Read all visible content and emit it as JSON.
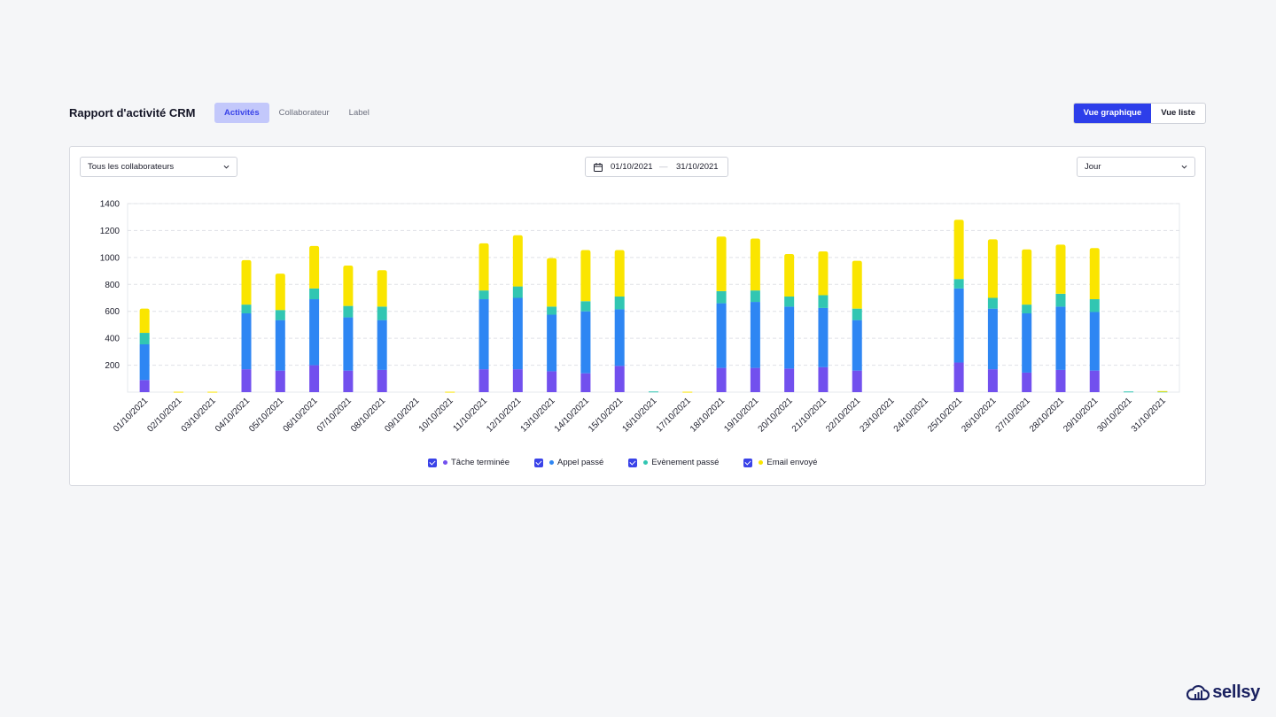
{
  "header": {
    "title": "Rapport d'activité CRM",
    "tabs": [
      {
        "label": "Activités"
      },
      {
        "label": "Collaborateur"
      },
      {
        "label": "Label"
      }
    ],
    "views": [
      {
        "label": "Vue graphique"
      },
      {
        "label": "Vue liste"
      }
    ]
  },
  "filters": {
    "collaborator": "Tous les collaborateurs",
    "date_start": "01/10/2021",
    "date_sep": "—",
    "date_end": "31/10/2021",
    "granularity": "Jour"
  },
  "brand": {
    "name": "sellsy"
  },
  "colors": {
    "tache": "#7250ee",
    "appel": "#2e86f3",
    "evenement": "#31c6b2",
    "email": "#fae500",
    "accent": "#2d3eea"
  },
  "chart_data": {
    "type": "bar",
    "stacked": true,
    "categories": [
      "01/10/2021",
      "02/10/2021",
      "03/10/2021",
      "04/10/2021",
      "05/10/2021",
      "06/10/2021",
      "07/10/2021",
      "08/10/2021",
      "09/10/2021",
      "10/10/2021",
      "11/10/2021",
      "12/10/2021",
      "13/10/2021",
      "14/10/2021",
      "15/10/2021",
      "16/10/2021",
      "17/10/2021",
      "18/10/2021",
      "19/10/2021",
      "20/10/2021",
      "21/10/2021",
      "22/10/2021",
      "23/10/2021",
      "24/10/2021",
      "25/10/2021",
      "26/10/2021",
      "27/10/2021",
      "28/10/2021",
      "29/10/2021",
      "30/10/2021",
      "31/10/2021"
    ],
    "yticks": [
      "1400",
      "1200",
      "1000",
      "800",
      "600",
      "400",
      "200"
    ],
    "ylim": [
      0,
      1400
    ],
    "grid": true,
    "legend": "bottom",
    "series": [
      {
        "name": "Tâche terminée",
        "color": "#7250ee",
        "values": [
          90,
          0,
          0,
          170,
          160,
          200,
          160,
          165,
          0,
          0,
          170,
          170,
          155,
          140,
          195,
          0,
          0,
          180,
          180,
          175,
          185,
          160,
          0,
          0,
          220,
          170,
          145,
          165,
          160,
          0,
          0
        ]
      },
      {
        "name": "Appel passé",
        "color": "#2e86f3",
        "values": [
          265,
          0,
          0,
          415,
          375,
          490,
          395,
          370,
          0,
          0,
          520,
          530,
          420,
          460,
          420,
          0,
          0,
          480,
          490,
          460,
          440,
          375,
          0,
          0,
          550,
          450,
          440,
          470,
          435,
          0,
          0
        ]
      },
      {
        "name": "Evènement passé",
        "color": "#31c6b2",
        "values": [
          85,
          0,
          0,
          65,
          75,
          80,
          85,
          100,
          0,
          0,
          65,
          85,
          60,
          75,
          95,
          5,
          0,
          90,
          85,
          75,
          95,
          85,
          0,
          0,
          70,
          80,
          65,
          95,
          95,
          5,
          5
        ]
      },
      {
        "name": "Email envoyé",
        "color": "#fae500",
        "values": [
          180,
          3,
          3,
          330,
          270,
          315,
          300,
          270,
          0,
          3,
          350,
          380,
          360,
          380,
          345,
          0,
          3,
          405,
          385,
          315,
          325,
          355,
          0,
          0,
          440,
          435,
          410,
          365,
          380,
          0,
          3
        ]
      }
    ]
  }
}
